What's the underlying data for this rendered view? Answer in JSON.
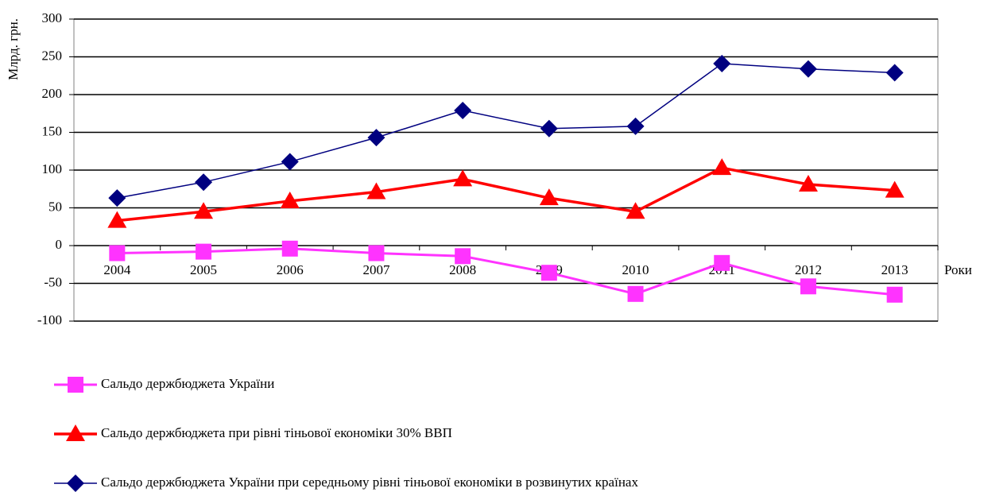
{
  "chart_data": {
    "type": "line",
    "y_label": "Млрд. грн.",
    "x_label": "Роки",
    "categories": [
      "2004",
      "2005",
      "2006",
      "2007",
      "2008",
      "2009",
      "2010",
      "2011",
      "2012",
      "2013"
    ],
    "series": [
      {
        "name": "Сальдо держбюджета України",
        "color": "#ff33ff",
        "marker": "square",
        "values": [
          -10,
          -8,
          -4,
          -10,
          -14,
          -36,
          -64,
          -23,
          -54,
          -65
        ]
      },
      {
        "name": "Сальдо держбюджета при рівні тіньової економіки 30% ВВП",
        "color": "#ff0000",
        "marker": "triangle",
        "values": [
          33,
          45,
          59,
          71,
          88,
          63,
          45,
          103,
          81,
          73
        ]
      },
      {
        "name": "Сальдо держбюджета України при середньому рівні тіньової економіки в розвинутих країнах",
        "color": "#000080",
        "marker": "diamond",
        "values": [
          63,
          84,
          111,
          143,
          179,
          155,
          158,
          241,
          234,
          229
        ]
      }
    ],
    "ylim": [
      -100,
      300
    ],
    "yticks": [
      -100,
      -50,
      0,
      50,
      100,
      150,
      200,
      250,
      300
    ],
    "grid": true
  }
}
